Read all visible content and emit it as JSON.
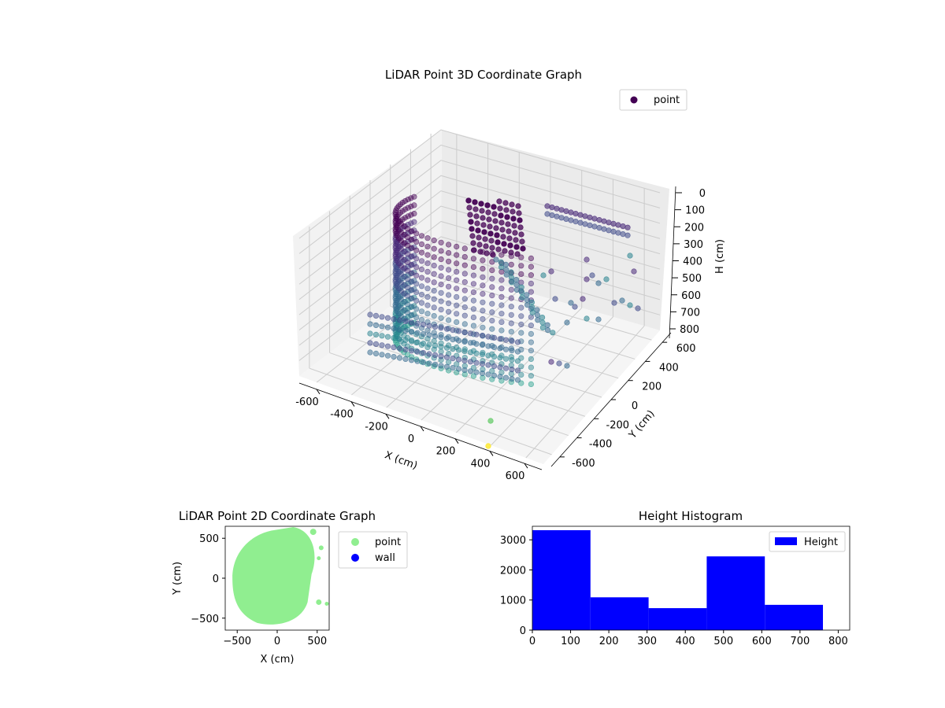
{
  "chart_data": [
    {
      "type": "scatter",
      "projection": "3d",
      "title": "LiDAR Point 3D Coordinate Graph",
      "xlabel": "X (cm)",
      "ylabel": "Y (cm)",
      "zlabel": "H (cm)",
      "xlim": [
        -700,
        700
      ],
      "ylim": [
        -700,
        700
      ],
      "zlim": [
        850,
        0
      ],
      "z_inverted": true,
      "xticks": [
        "-600",
        "-400",
        "-200",
        "0",
        "200",
        "400",
        "600"
      ],
      "yticks": [
        "-600",
        "-400",
        "-200",
        "0",
        "200",
        "400",
        "600"
      ],
      "zticks": [
        "0",
        "100",
        "200",
        "300",
        "400",
        "500",
        "600",
        "700",
        "800"
      ],
      "colormap": "viridis",
      "legend": {
        "position": "top-right",
        "entries": [
          {
            "name": "point",
            "color": "#440154"
          }
        ]
      },
      "series": [
        {
          "name": "point",
          "description_colors": [
            "#440154",
            "#3b528b",
            "#21918c",
            "#5ec962",
            "#fde725"
          ]
        }
      ]
    },
    {
      "type": "scatter",
      "title": "LiDAR Point 2D Coordinate Graph",
      "xlabel": "X (cm)",
      "ylabel": "Y (cm)",
      "xlim": [
        -650,
        650
      ],
      "ylim": [
        -650,
        650
      ],
      "xticks": [
        -500,
        0,
        500
      ],
      "yticks": [
        -500,
        0,
        500
      ],
      "legend": {
        "position": "outside-right",
        "entries": [
          {
            "name": "point",
            "color": "#90ee90"
          },
          {
            "name": "wall",
            "color": "#0000ff"
          }
        ]
      }
    },
    {
      "type": "bar",
      "subtype": "histogram",
      "title": "Height Histogram",
      "xlim": [
        0,
        830
      ],
      "ylim": [
        0,
        3450
      ],
      "xticks": [
        0,
        100,
        200,
        300,
        400,
        500,
        600,
        700,
        800
      ],
      "yticks": [
        0,
        1000,
        2000,
        3000
      ],
      "color": "#0000ff",
      "legend": {
        "position": "top-right",
        "entries": [
          {
            "name": "Height",
            "color": "#0000ff"
          }
        ]
      },
      "bins": [
        {
          "x0": 0,
          "x1": 152,
          "count": 3320
        },
        {
          "x0": 152,
          "x1": 304,
          "count": 1090
        },
        {
          "x0": 304,
          "x1": 456,
          "count": 730
        },
        {
          "x0": 456,
          "x1": 608,
          "count": 2450
        },
        {
          "x0": 608,
          "x1": 760,
          "count": 840
        }
      ]
    }
  ]
}
